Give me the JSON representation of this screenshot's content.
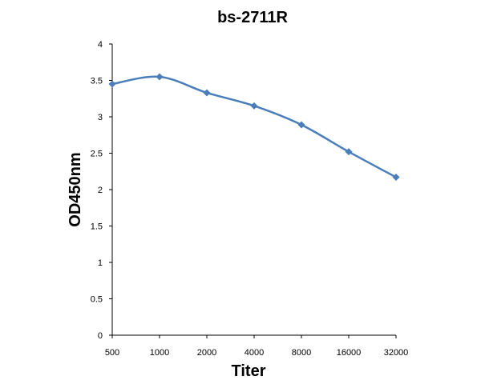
{
  "chart_data": {
    "type": "line",
    "title": "bs-2711R",
    "xlabel": "Titer",
    "ylabel": "OD450nm",
    "categories": [
      "500",
      "1000",
      "2000",
      "4000",
      "8000",
      "16000",
      "32000"
    ],
    "series": [
      {
        "values": [
          3.45,
          3.55,
          3.33,
          3.15,
          2.89,
          2.52,
          2.17
        ]
      }
    ],
    "ylim": [
      0,
      4
    ],
    "yticks": [
      0,
      0.5,
      1,
      1.5,
      2,
      2.5,
      3,
      3.5,
      4
    ],
    "smooth": true,
    "marker": "diamond",
    "grid": false,
    "legend": "none",
    "colors": {
      "series": "#4a7ebb",
      "axis": "#000000"
    }
  }
}
